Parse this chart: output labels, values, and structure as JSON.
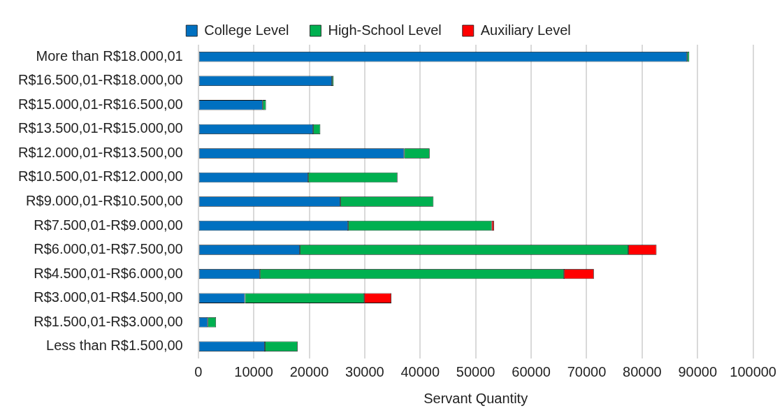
{
  "chart_data": {
    "type": "bar",
    "orientation": "horizontal",
    "stacked": true,
    "xlabel": "Servant Quantity",
    "categories": [
      "More than R$18.000,01",
      "R$16.500,01-R$18.000,00",
      "R$15.000,01-R$16.500,00",
      "R$13.500,01-R$15.000,00",
      "R$12.000,01-R$13.500,00",
      "R$10.500,01-R$12.000,00",
      "R$9.000,01-R$10.500,00",
      "R$7.500,01-R$9.000,00",
      "R$6.000,01-R$7.500,00",
      "R$4.500,01-R$6.000,00",
      "R$3.000,01-R$4.500,00",
      "R$1.500,01-R$3.000,00",
      "Less than R$1.500,00"
    ],
    "series": [
      {
        "name": "College Level",
        "color": "#0070c0",
        "values": [
          88100,
          24100,
          11600,
          20700,
          37100,
          19800,
          25600,
          27000,
          18300,
          11100,
          8400,
          1700,
          12000
        ]
      },
      {
        "name": "High-School Level",
        "color": "#00b050",
        "values": [
          400,
          300,
          600,
          1300,
          4600,
          16100,
          16800,
          25900,
          59200,
          54800,
          21500,
          1500,
          5900
        ]
      },
      {
        "name": "Auxiliary Level",
        "color": "#ff0000",
        "values": [
          null,
          null,
          null,
          null,
          null,
          null,
          null,
          400,
          5100,
          5400,
          4900,
          null,
          null
        ]
      }
    ],
    "xlim": [
      0,
      100000
    ],
    "xticks": [
      0,
      10000,
      20000,
      30000,
      40000,
      50000,
      60000,
      70000,
      80000,
      90000,
      100000
    ],
    "grid": "x",
    "legend": "top"
  }
}
